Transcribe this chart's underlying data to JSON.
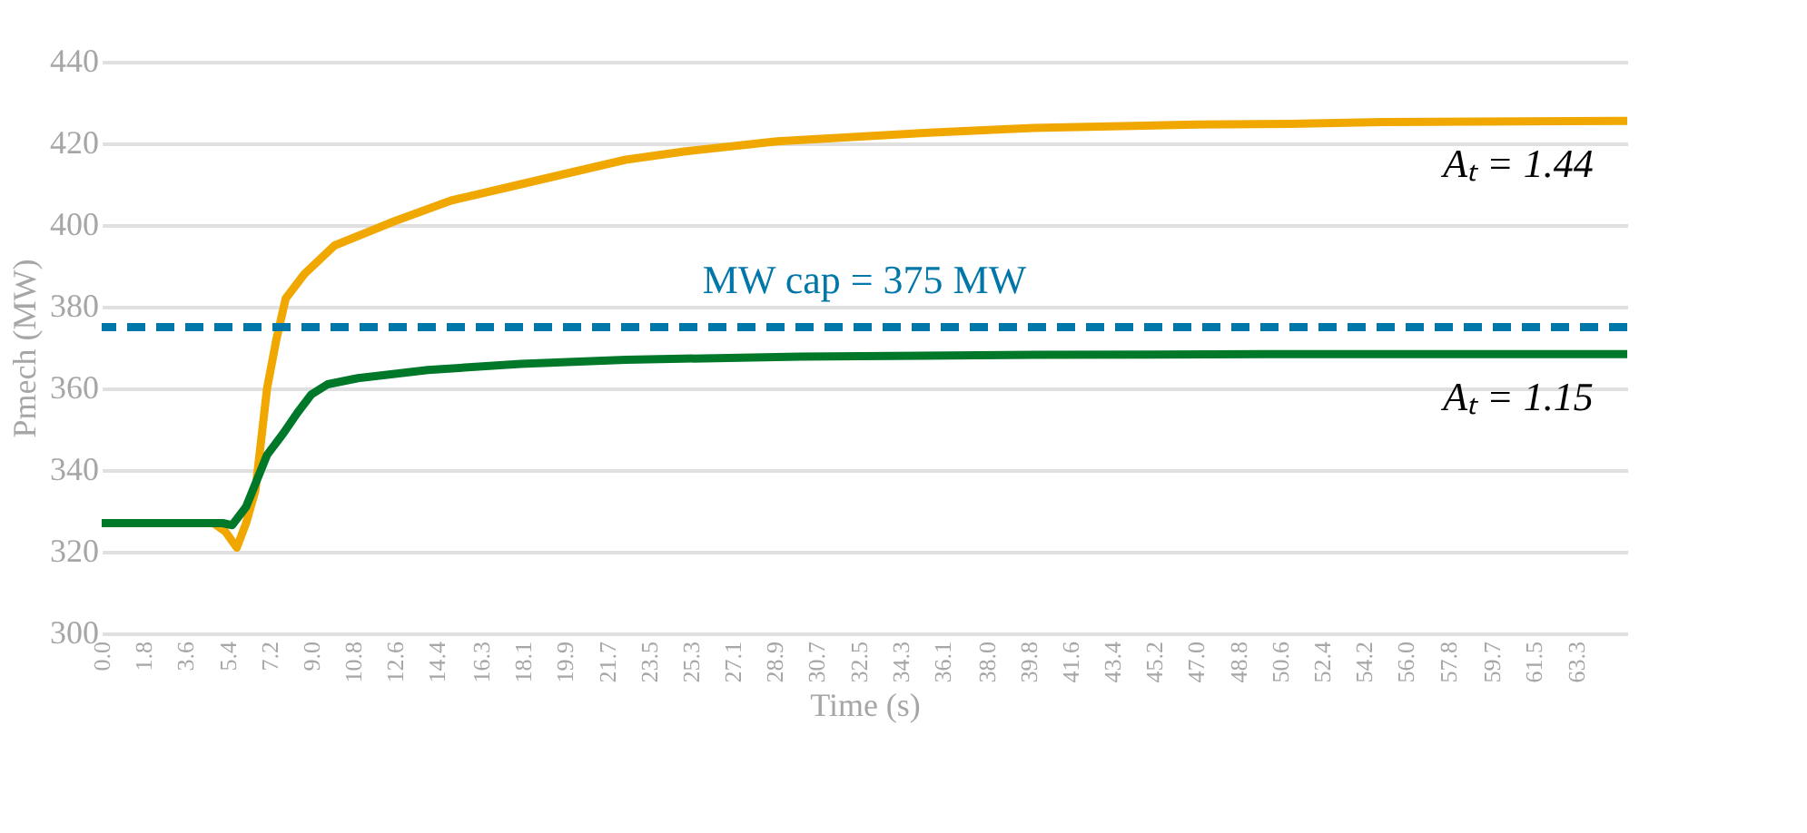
{
  "chart_data": {
    "type": "line",
    "xlabel": "Time (s)",
    "ylabel": "Pmech (MW)",
    "xlim": [
      0,
      65.5
    ],
    "ylim": [
      300,
      440
    ],
    "xticks": [
      {
        "value": 0,
        "label": "0.0"
      },
      1.8,
      3.6,
      5.4,
      7.2,
      {
        "value": 9,
        "label": "9.0"
      },
      10.8,
      12.6,
      14.4,
      16.3,
      18.1,
      19.9,
      21.7,
      23.5,
      25.3,
      27.1,
      28.9,
      30.7,
      32.5,
      34.3,
      36.1,
      {
        "value": 38,
        "label": "38.0"
      },
      39.8,
      41.6,
      43.4,
      45.2,
      {
        "value": 47,
        "label": "47.0"
      },
      48.8,
      50.6,
      52.4,
      54.2,
      {
        "value": 56,
        "label": "56.0"
      },
      57.8,
      59.7,
      61.5,
      63.3
    ],
    "yticks": [
      300,
      320,
      340,
      360,
      380,
      400,
      420,
      440
    ],
    "grid": "y",
    "line_style": "solid",
    "marker": "none",
    "series": [
      {
        "color": "#f0a800",
        "x": [
          0,
          4.8,
          5.3,
          5.8,
          6.2,
          6.6,
          7.1,
          7.5,
          7.9,
          8.7,
          10,
          12.6,
          15,
          18,
          22.5,
          25,
          29,
          35.5,
          40,
          47,
          51,
          55,
          65.5
        ],
        "values": [
          327,
          327,
          325,
          321,
          327,
          335,
          360,
          372,
          382,
          388,
          395,
          401,
          406,
          410,
          416,
          418,
          420.5,
          422.6,
          423.8,
          424.6,
          424.8,
          425.2,
          425.5
        ]
      },
      {
        "color": "#00782a",
        "x": [
          0,
          5.2,
          5.6,
          6.2,
          7.1,
          7.8,
          8.4,
          9,
          9.7,
          11,
          14,
          18,
          22.5,
          30,
          40,
          50,
          65.5
        ],
        "values": [
          327,
          327,
          326.5,
          331,
          343.7,
          349,
          354,
          358.5,
          361,
          362.5,
          364.5,
          366,
          367,
          367.8,
          368.2,
          368.4,
          368.4
        ]
      }
    ],
    "ref_lines": [
      {
        "axis": "y",
        "value": 375,
        "label": "MW cap = 375 MW",
        "color": "#0077a8",
        "line_style": "dashed"
      }
    ],
    "annotations": [
      "Aₜ = 1.44",
      "Aₜ = 1.15"
    ]
  }
}
